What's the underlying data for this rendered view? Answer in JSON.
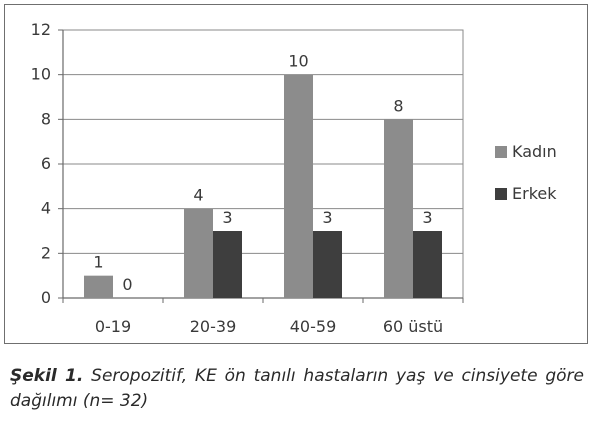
{
  "chart_data": {
    "type": "bar",
    "categories": [
      "0-19",
      "20-39",
      "40-59",
      "60 üstü"
    ],
    "series": [
      {
        "name": "Kadın",
        "values": [
          1,
          4,
          10,
          8
        ],
        "color": "#8c8c8c"
      },
      {
        "name": "Erkek",
        "values": [
          0,
          3,
          3,
          3
        ],
        "color": "#3e3e3e"
      }
    ],
    "y_ticks": [
      "0",
      "2",
      "4",
      "6",
      "8",
      "10",
      "12"
    ],
    "ylim": [
      0,
      12
    ],
    "grid": true,
    "legend_position": "right",
    "data_labels": true,
    "title": "",
    "xlabel": "",
    "ylabel": ""
  },
  "caption": {
    "label": "Şekil 1.",
    "text": " Seropozitif, KE ön tanılı hastaların yaş ve cinsiyete göre dağılımı (n= 32)"
  }
}
